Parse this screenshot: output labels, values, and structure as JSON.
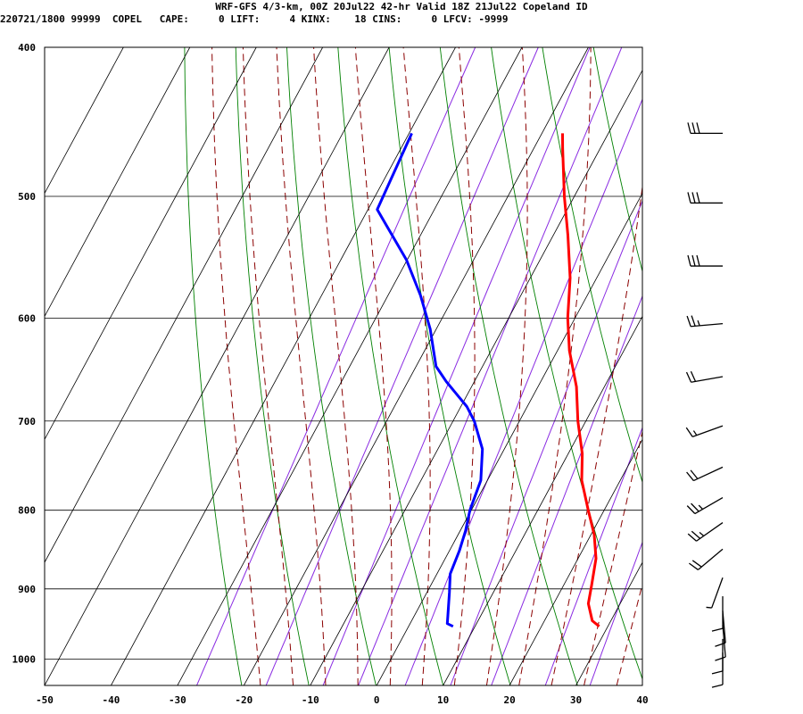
{
  "header": {
    "title": "WRF-GFS 4/3-km, 00Z 20Jul22 42-hr Valid 18Z 21Jul22 Copeland ID",
    "stats": "220721/1800 99999  COPEL   CAPE:     0 LIFT:     4 KINX:    18 CINS:     0 LFCV: -9999"
  },
  "chart_data": {
    "type": "line",
    "subtype": "skew-t log-p sounding",
    "title": "WRF-GFS 4/3-km, 00Z 20Jul22 42-hr Valid 18Z 21Jul22 Copeland ID",
    "xlabel": "",
    "ylabel": "",
    "x_ticks": [
      -50,
      -40,
      -30,
      -20,
      -10,
      0,
      10,
      20,
      30,
      40
    ],
    "y_ticks": [
      400,
      500,
      600,
      700,
      800,
      900,
      1000
    ],
    "xlim": [
      -50,
      40
    ],
    "ylim": [
      1040,
      400
    ],
    "y_scale": "log (pressure, hPa)",
    "skewed_temperature_axis": true,
    "grid": true,
    "colors": {
      "temperature": "#ff0000",
      "dewpoint": "#0000ff",
      "dry_adiabats": "#008000",
      "moist_adiabats": "#8b0000",
      "mixing_ratio": "#8a2be2",
      "grid": "#000000"
    },
    "series": [
      {
        "name": "temperature",
        "points": [
          {
            "p": 952,
            "t": 28.7
          },
          {
            "p": 944,
            "t": 27.2
          },
          {
            "p": 920,
            "t": 25.2
          },
          {
            "p": 895,
            "t": 24.2
          },
          {
            "p": 860,
            "t": 22.7
          },
          {
            "p": 830,
            "t": 20.5
          },
          {
            "p": 800,
            "t": 17.6
          },
          {
            "p": 765,
            "t": 14.2
          },
          {
            "p": 735,
            "t": 12.1
          },
          {
            "p": 700,
            "t": 8.8
          },
          {
            "p": 665,
            "t": 5.8
          },
          {
            "p": 630,
            "t": 1.8
          },
          {
            "p": 600,
            "t": -1.1
          },
          {
            "p": 565,
            "t": -4.0
          },
          {
            "p": 530,
            "t": -7.8
          },
          {
            "p": 500,
            "t": -11.5
          },
          {
            "p": 465,
            "t": -15.7
          },
          {
            "p": 455,
            "t": -16.9
          }
        ]
      },
      {
        "name": "dewpoint",
        "points": [
          {
            "p": 952,
            "t": 6.7
          },
          {
            "p": 948,
            "t": 5.6
          },
          {
            "p": 938,
            "t": 5.1
          },
          {
            "p": 905,
            "t": 3.4
          },
          {
            "p": 880,
            "t": 2.0
          },
          {
            "p": 850,
            "t": 1.5
          },
          {
            "p": 825,
            "t": 0.8
          },
          {
            "p": 800,
            "t": -0.2
          },
          {
            "p": 765,
            "t": -1.0
          },
          {
            "p": 730,
            "t": -3.3
          },
          {
            "p": 700,
            "t": -6.8
          },
          {
            "p": 685,
            "t": -9.1
          },
          {
            "p": 660,
            "t": -14.2
          },
          {
            "p": 645,
            "t": -17.0
          },
          {
            "p": 610,
            "t": -20.9
          },
          {
            "p": 580,
            "t": -25.1
          },
          {
            "p": 550,
            "t": -30.1
          },
          {
            "p": 510,
            "t": -38.6
          },
          {
            "p": 455,
            "t": -39.6
          }
        ]
      }
    ],
    "wind_barbs": [
      {
        "p": 455,
        "speed_kt": 30,
        "dir_deg": 270
      },
      {
        "p": 505,
        "speed_kt": 30,
        "dir_deg": 270
      },
      {
        "p": 555,
        "speed_kt": 30,
        "dir_deg": 270
      },
      {
        "p": 605,
        "speed_kt": 25,
        "dir_deg": 265
      },
      {
        "p": 655,
        "speed_kt": 20,
        "dir_deg": 260
      },
      {
        "p": 705,
        "speed_kt": 15,
        "dir_deg": 250
      },
      {
        "p": 750,
        "speed_kt": 20,
        "dir_deg": 245
      },
      {
        "p": 785,
        "speed_kt": 25,
        "dir_deg": 240
      },
      {
        "p": 815,
        "speed_kt": 25,
        "dir_deg": 235
      },
      {
        "p": 848,
        "speed_kt": 20,
        "dir_deg": 230
      },
      {
        "p": 885,
        "speed_kt": 5,
        "dir_deg": 200
      },
      {
        "p": 910,
        "speed_kt": 10,
        "dir_deg": 180
      },
      {
        "p": 930,
        "speed_kt": 10,
        "dir_deg": 175
      },
      {
        "p": 950,
        "speed_kt": 10,
        "dir_deg": 175
      },
      {
        "p": 970,
        "speed_kt": 10,
        "dir_deg": 180
      },
      {
        "p": 990,
        "speed_kt": 10,
        "dir_deg": 180
      }
    ]
  }
}
